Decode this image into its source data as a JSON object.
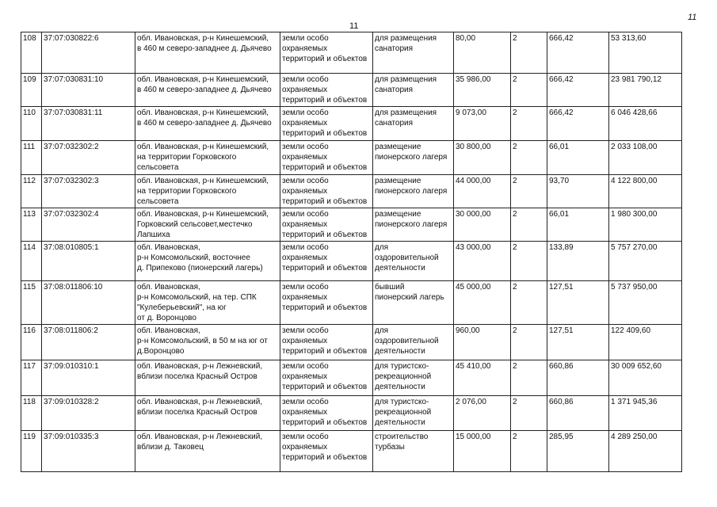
{
  "page_number": "11",
  "corner_mark": "11",
  "rows": [
    {
      "n": "108",
      "cadastral": "37:07:030822:6",
      "address": "обл. Ивановская,  р-н Кинешемский,\nв 460 м северо-западнее д. Дьячево",
      "category": "земли особо\nохраняемых\nтерриторий и объектов",
      "use": "для размещения\nсанатория",
      "area": "80,00",
      "group": "2",
      "rate": "666,42",
      "value": "53 313,60"
    },
    {
      "n": "109",
      "cadastral": "37:07:030831:10",
      "address": "обл. Ивановская,  р-н Кинешемский,\nв 460 м северо-западнее д. Дьячево",
      "category": "земли особо\nохраняемых\nтерриторий и объектов",
      "use": "для размещения\nсанатория",
      "area": "35 986,00",
      "group": "2",
      "rate": "666,42",
      "value": "23 981 790,12"
    },
    {
      "n": "110",
      "cadastral": "37:07:030831:11",
      "address": "обл. Ивановская,  р-н Кинешемский,\nв 460 м северо-западнее д. Дьячево",
      "category": "земли особо\nохраняемых\nтерриторий и объектов",
      "use": "для размещения\nсанатория",
      "area": "9 073,00",
      "group": "2",
      "rate": "666,42",
      "value": "6 046 428,66"
    },
    {
      "n": "111",
      "cadastral": "37:07:032302:2",
      "address": "обл. Ивановская,  р-н Кинешемский,\nна территории Горковского\nсельсовета",
      "category": "земли особо\nохраняемых\nтерриторий и объектов",
      "use": "размещение\nпионерского лагеря",
      "area": "30 800,00",
      "group": "2",
      "rate": "66,01",
      "value": "2 033 108,00"
    },
    {
      "n": "112",
      "cadastral": "37:07:032302:3",
      "address": "обл. Ивановская,  р-н Кинешемский,\nна территории Горковского\nсельсовета",
      "category": "земли особо\nохраняемых\nтерриторий и объектов",
      "use": "размещение\nпионерского лагеря",
      "area": "44 000,00",
      "group": "2",
      "rate": "93,70",
      "value": "4 122 800,00"
    },
    {
      "n": "113",
      "cadastral": "37:07:032302:4",
      "address": "обл. Ивановская,  р-н Кинешемский,\nГорковский сельсовет,местечко\nЛапшиха",
      "category": "земли особо\nохраняемых\nтерриторий и объектов",
      "use": "размещение\nпионерского лагеря",
      "area": "30 000,00",
      "group": "2",
      "rate": "66,01",
      "value": "1 980 300,00"
    },
    {
      "n": "114",
      "cadastral": "37:08:010805:1",
      "address": "обл. Ивановская,\nр-н Комсомольский,  восточнее\nд. Припеково (пионерский лагерь)",
      "category": "земли особо\nохраняемых\nтерриторий и объектов",
      "use": "для\nоздоровительной\nдеятельности",
      "area": "43 000,00",
      "group": "2",
      "rate": "133,89",
      "value": "5 757 270,00"
    },
    {
      "n": "115",
      "cadastral": "37:08:011806:10",
      "address": "обл. Ивановская,\nр-н Комсомольский,  на тер. СПК\n\"Кулеберьевский\", на юг\nот д. Воронцово",
      "category": "земли особо\nохраняемых\nтерриторий и объектов",
      "use": "бывший\nпионерский лагерь",
      "area": "45 000,00",
      "group": "2",
      "rate": "127,51",
      "value": "5 737 950,00"
    },
    {
      "n": "116",
      "cadastral": "37:08:011806:2",
      "address": "обл. Ивановская,\nр-н Комсомольский,  в 50 м на юг от\nд.Воронцово",
      "category": "земли особо\nохраняемых\nтерриторий и объектов",
      "use": "для\nоздоровительной\nдеятельности",
      "area": "960,00",
      "group": "2",
      "rate": "127,51",
      "value": "122 409,60"
    },
    {
      "n": "117",
      "cadastral": "37:09:010310:1",
      "address": "обл. Ивановская,  р-н Лежневский,\nвблизи поселка Красный Остров",
      "category": "земли особо\nохраняемых\nтерриторий и объектов",
      "use": " для туристско-\nрекреационной\nдеятельности",
      "area": "45 410,00",
      "group": "2",
      "rate": "660,86",
      "value": "30 009 652,60"
    },
    {
      "n": "118",
      "cadastral": "37:09:010328:2",
      "address": "обл. Ивановская,  р-н Лежневский,\nвблизи поселка Красный Остров",
      "category": "земли особо\nохраняемых\nтерриторий и объектов",
      "use": "для туристско-\nрекреационной\nдеятельности",
      "area": "2 076,00",
      "group": "2",
      "rate": "660,86",
      "value": "1 371 945,36"
    },
    {
      "n": "119",
      "cadastral": "37:09:010335:3",
      "address": "обл. Ивановская,  р-н Лежневский,\nвблизи д. Таковец",
      "category": "земли особо\nохраняемых\nтерриторий и объектов",
      "use": "строительство\nтурбазы",
      "area": "15 000,00",
      "group": "2",
      "rate": "285,95",
      "value": "4 289 250,00"
    }
  ]
}
